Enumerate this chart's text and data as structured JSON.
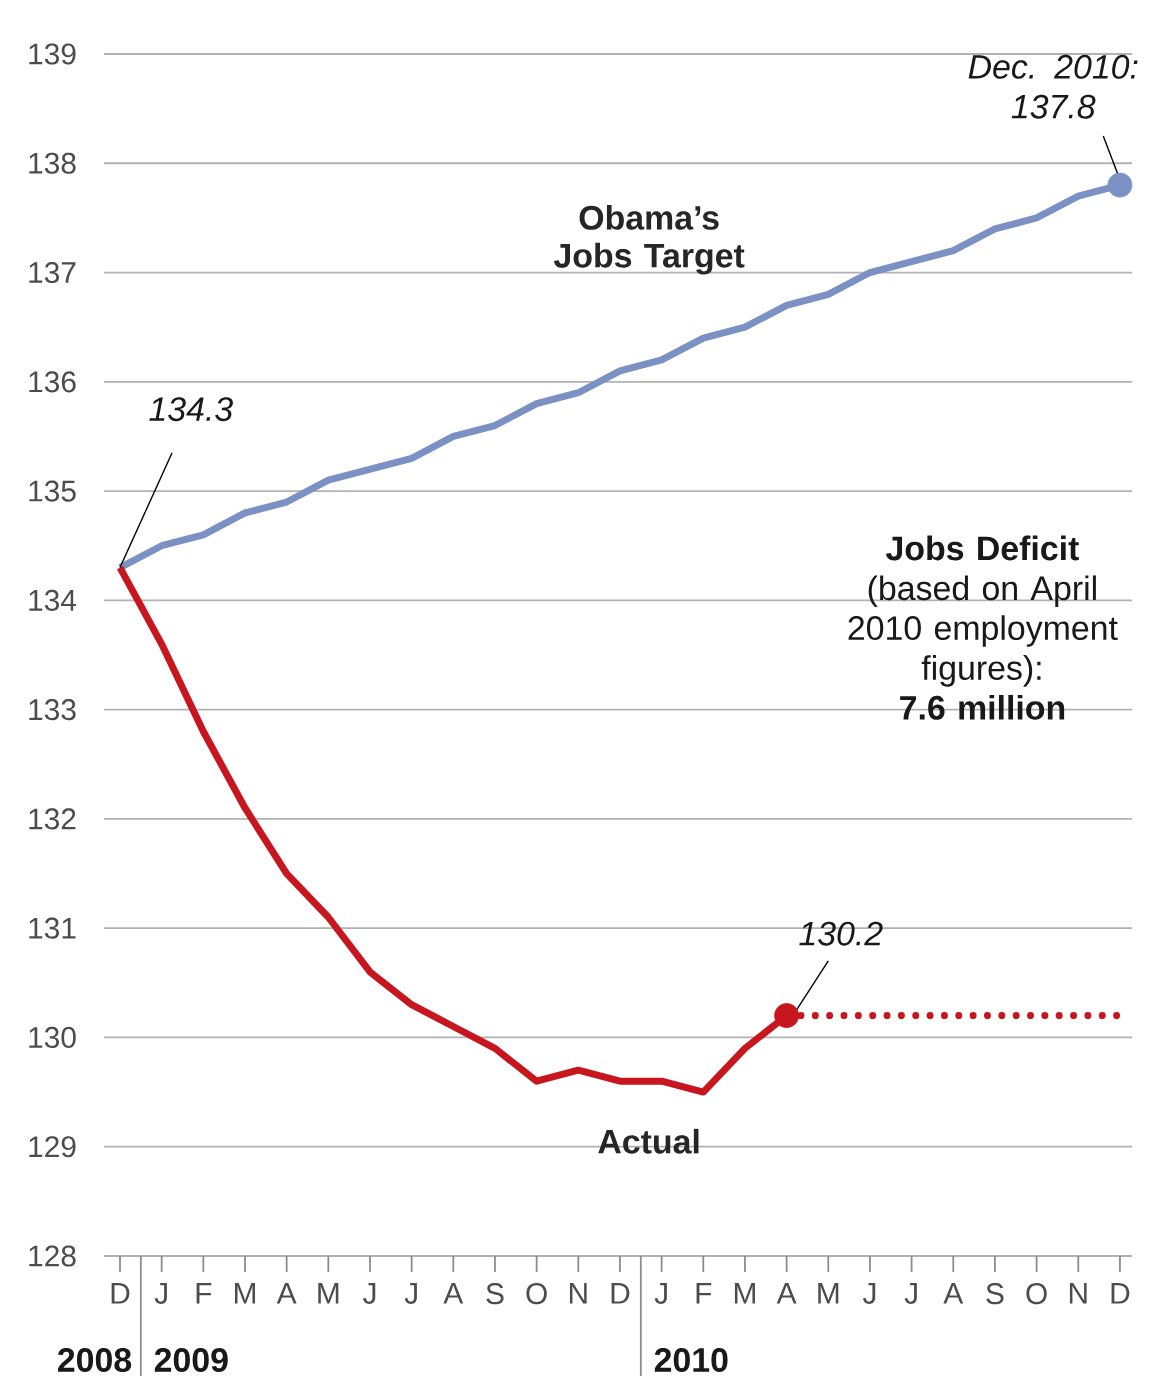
{
  "chart_data": {
    "type": "line",
    "categories": [
      "D",
      "J",
      "F",
      "M",
      "A",
      "M",
      "J",
      "J",
      "A",
      "S",
      "O",
      "N",
      "D",
      "J",
      "F",
      "M",
      "A",
      "M",
      "J",
      "J",
      "A",
      "S",
      "O",
      "N",
      "D"
    ],
    "series": [
      {
        "name": "Obama’s Jobs Target",
        "color": "#7b91c4",
        "values": [
          134.3,
          134.5,
          134.6,
          134.8,
          134.9,
          135.1,
          135.2,
          135.3,
          135.5,
          135.6,
          135.8,
          135.9,
          136.1,
          136.2,
          136.4,
          136.5,
          136.7,
          136.8,
          137.0,
          137.1,
          137.2,
          137.4,
          137.5,
          137.7,
          137.8
        ]
      },
      {
        "name": "Actual",
        "color": "#c8161e",
        "values": [
          134.3,
          133.6,
          132.8,
          132.1,
          131.5,
          131.1,
          130.6,
          130.3,
          130.1,
          129.9,
          129.6,
          129.7,
          129.6,
          129.6,
          129.5,
          129.9,
          130.2,
          null,
          null,
          null,
          null,
          null,
          null,
          null,
          null
        ]
      },
      {
        "color": "#c8161e",
        "line_style": "dotted",
        "values": [
          null,
          null,
          null,
          null,
          null,
          null,
          null,
          null,
          null,
          null,
          null,
          null,
          null,
          null,
          null,
          null,
          130.2,
          130.2,
          130.2,
          130.2,
          130.2,
          130.2,
          130.2,
          130.2,
          130.2
        ]
      },
      {
        "type": "scatter",
        "color": "#7b91c4",
        "values": [
          null,
          null,
          null,
          null,
          null,
          null,
          null,
          null,
          null,
          null,
          null,
          null,
          null,
          null,
          null,
          null,
          null,
          null,
          null,
          null,
          null,
          null,
          null,
          null,
          137.8
        ]
      },
      {
        "type": "scatter",
        "color": "#c8161e",
        "values": [
          null,
          null,
          null,
          null,
          null,
          null,
          null,
          null,
          null,
          null,
          null,
          null,
          null,
          null,
          null,
          null,
          130.2,
          null,
          null,
          null,
          null,
          null,
          null,
          null,
          null
        ]
      }
    ],
    "ylim": [
      128,
      139
    ],
    "yticks": [
      128,
      129,
      130,
      131,
      132,
      133,
      134,
      135,
      136,
      137,
      138,
      139
    ],
    "grid": "y",
    "annotations": [
      {
        "text": "134.3",
        "x": "D",
        "y": 134.3
      },
      "Dec. 2010: 137.8",
      {
        "text": "130.2",
        "y": 130.2
      },
      "**Jobs Deficit** (based on April 2010 employment figures): **7.6 million**",
      "2008",
      "2009",
      "2010"
    ]
  }
}
